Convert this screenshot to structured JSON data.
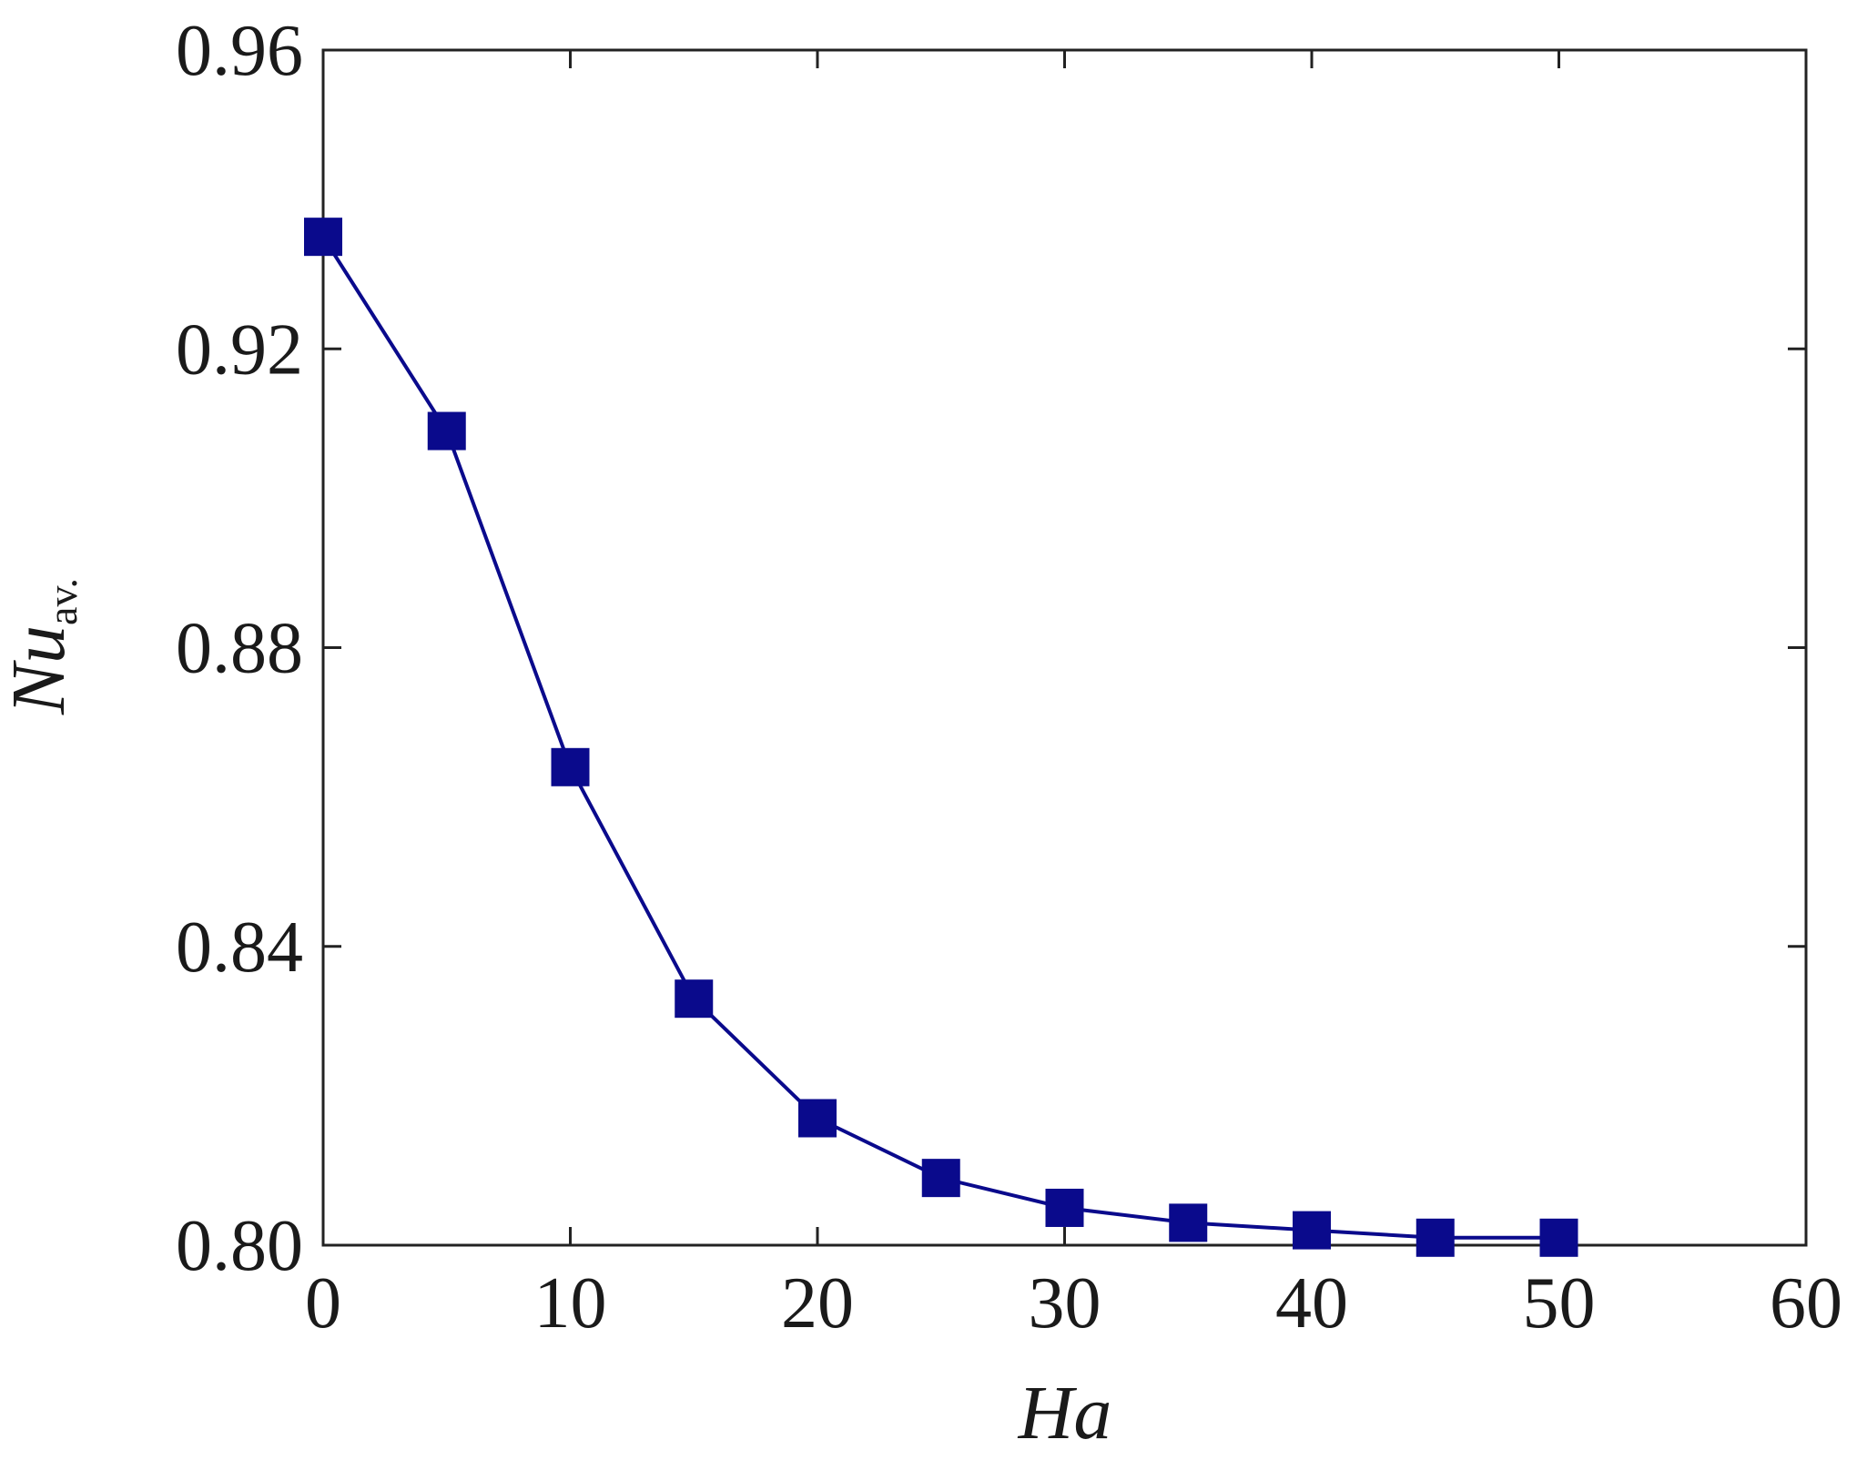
{
  "chart_data": {
    "type": "line",
    "x_label": "Ha",
    "y_label": "Nu",
    "y_label_subscript": "av.",
    "x": [
      0,
      5,
      10,
      15,
      20,
      25,
      30,
      35,
      40,
      45,
      50
    ],
    "series": [
      {
        "color": "#0a0a8c",
        "marker": "square",
        "values": [
          0.935,
          0.909,
          0.864,
          0.833,
          0.817,
          0.809,
          0.805,
          0.803,
          0.802,
          0.801,
          0.801
        ]
      }
    ],
    "xlim": [
      0,
      60
    ],
    "xticks": [
      0,
      10,
      20,
      30,
      40,
      50,
      60
    ],
    "ylim": [
      0.8,
      0.96
    ],
    "yticks": [
      {
        "value": 0.8,
        "label": "0.80"
      },
      0.84,
      0.88,
      0.92,
      0.96
    ],
    "grid": false
  }
}
